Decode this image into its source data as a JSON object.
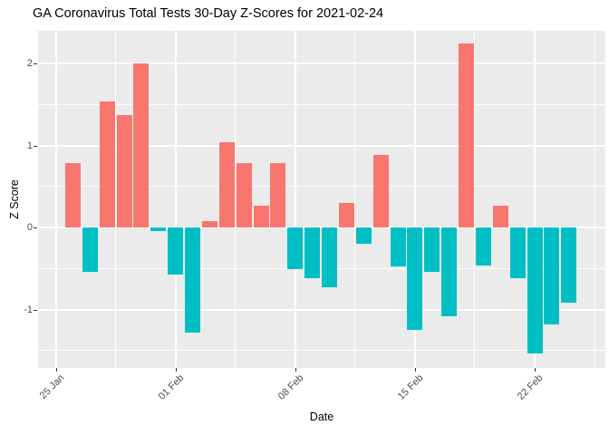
{
  "chart_data": {
    "type": "bar",
    "title": "GA Coronavirus Total Tests 30-Day Z-Scores for 2021-02-24",
    "xlabel": "Date",
    "ylabel": "Z Score",
    "x": [
      "2021-01-26",
      "2021-01-27",
      "2021-01-28",
      "2021-01-29",
      "2021-01-30",
      "2021-01-31",
      "2021-02-01",
      "2021-02-02",
      "2021-02-03",
      "2021-02-04",
      "2021-02-05",
      "2021-02-06",
      "2021-02-07",
      "2021-02-08",
      "2021-02-09",
      "2021-02-10",
      "2021-02-11",
      "2021-02-12",
      "2021-02-13",
      "2021-02-14",
      "2021-02-15",
      "2021-02-16",
      "2021-02-17",
      "2021-02-18",
      "2021-02-19",
      "2021-02-20",
      "2021-02-21",
      "2021-02-22",
      "2021-02-23",
      "2021-02-24"
    ],
    "values": [
      0.79,
      -0.54,
      1.54,
      1.37,
      2.0,
      -0.04,
      -0.57,
      -1.28,
      0.08,
      1.04,
      0.78,
      0.27,
      0.78,
      -0.51,
      -0.62,
      -0.73,
      0.3,
      -0.2,
      0.88,
      -0.47,
      -1.25,
      -0.54,
      -1.08,
      2.24,
      -0.46,
      0.27,
      -0.62,
      -1.54,
      -1.18,
      -0.92
    ],
    "ylim": [
      -1.73,
      2.42
    ],
    "y_major_ticks": [
      2,
      1,
      0,
      -1
    ],
    "y_tick_labels": [
      "2",
      "1",
      "0",
      "-1"
    ],
    "y_minor_ticks": [
      1.5,
      0.5,
      -0.5,
      -1.5
    ],
    "x_major_tick_dates": [
      "2021-01-25",
      "2021-02-01",
      "2021-02-08",
      "2021-02-15",
      "2021-02-22"
    ],
    "x_tick_labels": [
      "25 Jan",
      "01 Feb",
      "08 Feb",
      "15 Feb",
      "22 Feb"
    ],
    "x_minor_day_offsets": [
      3.5,
      10.5,
      17.5,
      24.5,
      31.5
    ],
    "grid": "on",
    "legend_position": "none",
    "colors": {
      "positive_bar": "#F8766D",
      "negative_bar": "#00BFC4",
      "panel_background": "#EBEBEB",
      "grid_color": "#FFFFFF",
      "tick_label_color": "#4D4D4D"
    }
  }
}
